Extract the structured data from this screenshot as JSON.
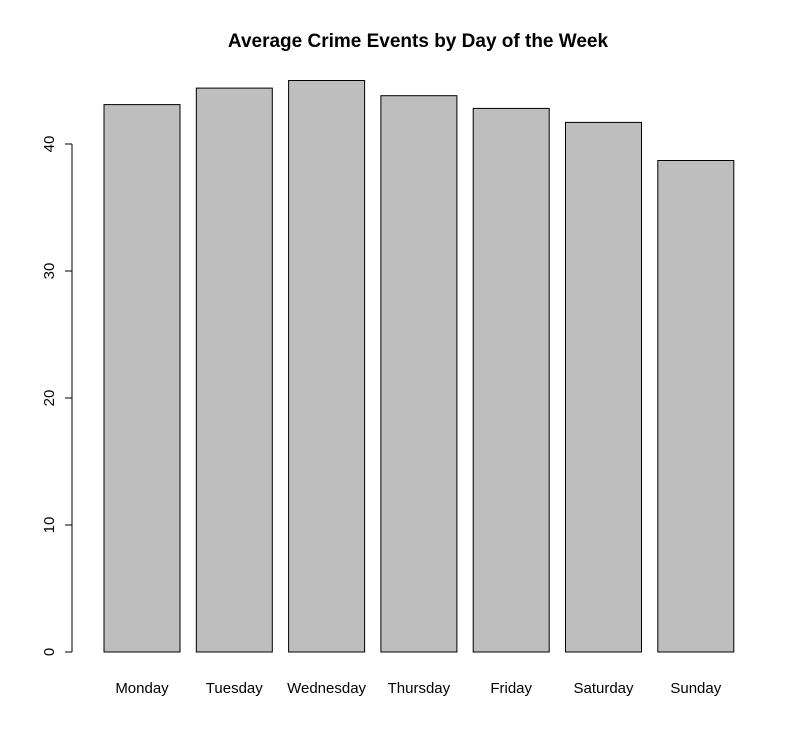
{
  "chart_data": {
    "type": "bar",
    "title": "Average Crime Events by Day of the Week",
    "xlabel": "",
    "ylabel": "",
    "categories": [
      "Monday",
      "Tuesday",
      "Wednesday",
      "Thursday",
      "Friday",
      "Saturday",
      "Sunday"
    ],
    "values": [
      43.1,
      44.4,
      45.0,
      43.8,
      42.8,
      41.7,
      38.7
    ],
    "y_ticks": [
      "0",
      "10",
      "20",
      "30",
      "40"
    ],
    "ylim": [
      0,
      45
    ],
    "grid": false,
    "legend": "none",
    "bar_color": "#bebebe",
    "bar_border_color": "#000000"
  }
}
